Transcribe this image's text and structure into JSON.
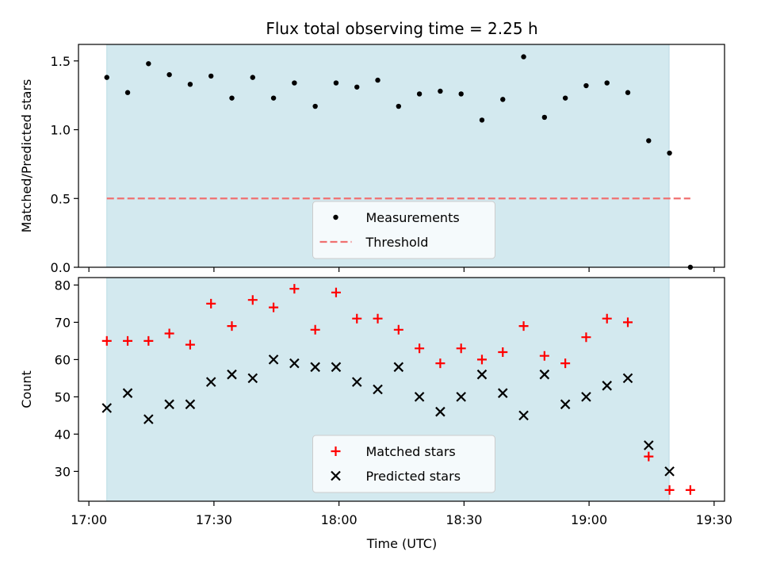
{
  "chart_data": {
    "title": "Flux total observing time = 2.25 h",
    "colors": {
      "shade": "#d3e9ef",
      "measurement": "#000000",
      "threshold": "#f07070",
      "matched": "#ff0000",
      "predicted": "#000000"
    },
    "x_axis": {
      "label": "Time (UTC)",
      "unit": "minutes after 17:00",
      "tick_values": [
        0,
        30,
        60,
        90,
        120,
        150
      ],
      "tick_labels": [
        "17:00",
        "17:30",
        "18:00",
        "18:30",
        "19:00",
        "19:30"
      ],
      "xlim": [
        -2.5,
        152.5
      ],
      "shaded_interval": [
        4.3,
        139.2
      ]
    },
    "x": [
      4.3,
      9.3,
      14.3,
      19.3,
      24.3,
      29.3,
      34.3,
      39.3,
      44.3,
      49.3,
      54.3,
      59.3,
      64.3,
      69.3,
      74.3,
      79.3,
      84.3,
      89.3,
      94.3,
      99.3,
      104.3,
      109.3,
      114.3,
      119.3,
      124.3,
      129.3,
      134.3,
      139.3,
      144.3
    ],
    "panels": [
      {
        "type": "scatter",
        "ylabel": "Matched/Predicted stars",
        "ylim": [
          0,
          1.62
        ],
        "yticks": [
          0.0,
          0.5,
          1.0,
          1.5
        ],
        "ytick_labels": [
          "0.0",
          "0.5",
          "1.0",
          "1.5"
        ],
        "legend_position": "lower-center",
        "series": [
          {
            "name": "Measurements",
            "marker": "dot",
            "values": [
              1.38,
              1.27,
              1.48,
              1.4,
              1.33,
              1.39,
              1.23,
              1.38,
              1.23,
              1.34,
              1.17,
              1.34,
              1.31,
              1.36,
              1.17,
              1.26,
              1.28,
              1.26,
              1.07,
              1.22,
              1.53,
              1.09,
              1.23,
              1.32,
              1.34,
              1.27,
              0.92,
              0.83,
              0.0
            ]
          }
        ],
        "threshold": {
          "name": "Threshold",
          "value": 0.5,
          "x_range": [
            4.3,
            144.3
          ]
        }
      },
      {
        "type": "scatter",
        "ylabel": "Count",
        "ylim": [
          22,
          82
        ],
        "yticks": [
          30,
          40,
          50,
          60,
          70,
          80
        ],
        "ytick_labels": [
          "30",
          "40",
          "50",
          "60",
          "70",
          "80"
        ],
        "legend_position": "lower-center",
        "series": [
          {
            "name": "Matched stars",
            "marker": "plus",
            "values": [
              65,
              65,
              65,
              67,
              64,
              75,
              69,
              76,
              74,
              79,
              68,
              78,
              71,
              71,
              68,
              63,
              59,
              63,
              60,
              62,
              69,
              61,
              59,
              66,
              71,
              70,
              34,
              25,
              25
            ]
          },
          {
            "name": "Predicted stars",
            "marker": "x",
            "values": [
              47,
              51,
              44,
              48,
              48,
              54,
              56,
              55,
              60,
              59,
              58,
              58,
              54,
              52,
              58,
              50,
              46,
              50,
              56,
              51,
              45,
              56,
              48,
              50,
              53,
              55,
              37,
              30,
              null
            ]
          }
        ]
      }
    ]
  }
}
